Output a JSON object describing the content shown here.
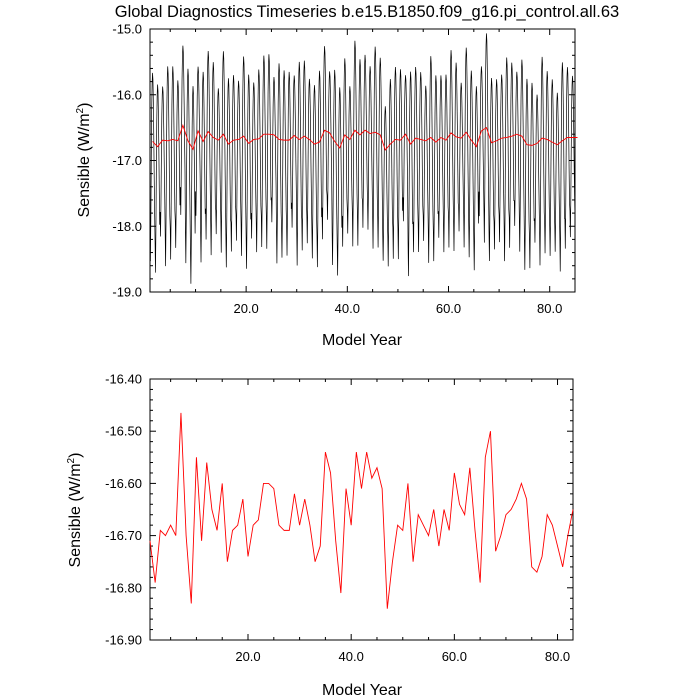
{
  "figure": {
    "title": "Global Diagnostics Timeseries b.e15.B1850.f09_g16.pi_control.all.63"
  },
  "chart_data": [
    {
      "type": "line",
      "xlabel": "Model Year",
      "ylabel": "Sensible (W/m",
      "ylabel_sup": "2",
      "ylabel_close": ")",
      "xlim": [
        1,
        85
      ],
      "ylim": [
        -19.0,
        -15.0
      ],
      "xticks": [
        20,
        40,
        60,
        80
      ],
      "xtick_labels": [
        "20.0",
        "40.0",
        "60.0",
        "80.0"
      ],
      "yticks": [
        -19.0,
        -18.0,
        -17.0,
        -16.0,
        -15.0
      ],
      "ytick_labels": [
        "-19.0",
        "-18.0",
        "-17.0",
        "-16.0",
        "-15.0"
      ],
      "grid": false,
      "series": [
        {
          "kind": "monthly",
          "color": "#000000",
          "pattern_values": [
            -17.95,
            -18.4,
            -17.8,
            -16.95,
            -16.2,
            -15.8,
            -15.65,
            -15.75,
            -16.1,
            -16.6,
            -17.2,
            -17.7
          ]
        },
        {
          "kind": "annual",
          "color": "#ff0000",
          "x": [
            1,
            2,
            3,
            4,
            5,
            6,
            7,
            8,
            9,
            10,
            11,
            12,
            13,
            14,
            15,
            16,
            17,
            18,
            19,
            20,
            21,
            22,
            23,
            24,
            25,
            26,
            27,
            28,
            29,
            30,
            31,
            32,
            33,
            34,
            35,
            36,
            37,
            38,
            39,
            40,
            41,
            42,
            43,
            44,
            45,
            46,
            47,
            48,
            49,
            50,
            51,
            52,
            53,
            54,
            55,
            56,
            57,
            58,
            59,
            60,
            61,
            62,
            63,
            64,
            65,
            66,
            67,
            68,
            69,
            70,
            71,
            72,
            73,
            74,
            75,
            76,
            77,
            78,
            79,
            80,
            81,
            82,
            83,
            84,
            85
          ]
        }
      ]
    },
    {
      "type": "line",
      "xlabel": "Model Year",
      "ylabel": "Sensible (W/m",
      "ylabel_sup": "2",
      "ylabel_close": ")",
      "xlim": [
        1,
        83
      ],
      "ylim": [
        -16.9,
        -16.4
      ],
      "xticks": [
        20,
        40,
        60,
        80
      ],
      "xtick_labels": [
        "20.0",
        "40.0",
        "60.0",
        "80.0"
      ],
      "yticks": [
        -16.9,
        -16.8,
        -16.7,
        -16.6,
        -16.5,
        -16.4
      ],
      "ytick_labels": [
        "-16.90",
        "-16.80",
        "-16.70",
        "-16.60",
        "-16.50",
        "-16.40"
      ],
      "grid": false,
      "series": [
        {
          "kind": "annual",
          "color": "#ff0000",
          "x": [
            1,
            2,
            3,
            4,
            5,
            6,
            7,
            8,
            9,
            10,
            11,
            12,
            13,
            14,
            15,
            16,
            17,
            18,
            19,
            20,
            21,
            22,
            23,
            24,
            25,
            26,
            27,
            28,
            29,
            30,
            31,
            32,
            33,
            34,
            35,
            36,
            37,
            38,
            39,
            40,
            41,
            42,
            43,
            44,
            45,
            46,
            47,
            48,
            49,
            50,
            51,
            52,
            53,
            54,
            55,
            56,
            57,
            58,
            59,
            60,
            61,
            62,
            63,
            64,
            65,
            66,
            67,
            68,
            69,
            70,
            71,
            72,
            73,
            74,
            75,
            76,
            77,
            78,
            79,
            80,
            81,
            82,
            83
          ],
          "values": [
            -16.71,
            -16.79,
            -16.69,
            -16.7,
            -16.68,
            -16.7,
            -16.465,
            -16.7,
            -16.83,
            -16.55,
            -16.71,
            -16.56,
            -16.65,
            -16.69,
            -16.6,
            -16.75,
            -16.69,
            -16.68,
            -16.63,
            -16.74,
            -16.68,
            -16.67,
            -16.6,
            -16.6,
            -16.61,
            -16.68,
            -16.69,
            -16.69,
            -16.62,
            -16.68,
            -16.63,
            -16.68,
            -16.75,
            -16.72,
            -16.54,
            -16.58,
            -16.71,
            -16.81,
            -16.61,
            -16.68,
            -16.54,
            -16.61,
            -16.54,
            -16.59,
            -16.57,
            -16.61,
            -16.84,
            -16.75,
            -16.68,
            -16.69,
            -16.6,
            -16.75,
            -16.66,
            -16.68,
            -16.7,
            -16.65,
            -16.72,
            -16.65,
            -16.69,
            -16.58,
            -16.64,
            -16.66,
            -16.57,
            -16.69,
            -16.79,
            -16.55,
            -16.5,
            -16.73,
            -16.7,
            -16.66,
            -16.65,
            -16.63,
            -16.6,
            -16.63,
            -16.76,
            -16.77,
            -16.74,
            -16.66,
            -16.68,
            -16.72,
            -16.76,
            -16.7,
            -16.65
          ]
        }
      ]
    }
  ]
}
